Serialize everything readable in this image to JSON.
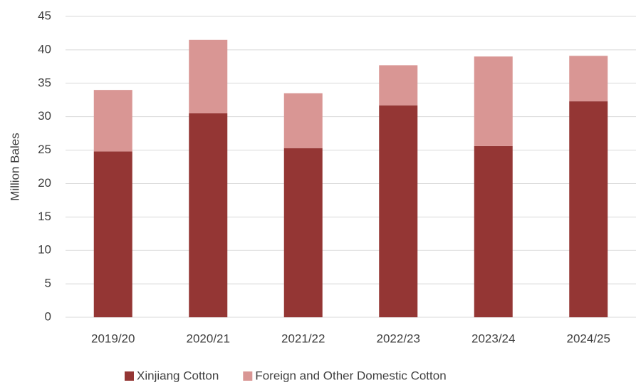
{
  "chart_data": {
    "type": "stacked_bar",
    "y_label": "Million Bales",
    "categories": [
      "2019/20",
      "2020/21",
      "2021/22",
      "2022/23",
      "2023/24",
      "2024/25"
    ],
    "series": [
      {
        "name": "Xinjiang Cotton",
        "color": "#943634",
        "values": [
          24.8,
          30.5,
          25.3,
          31.7,
          25.6,
          32.3
        ]
      },
      {
        "name": "Foreign and Other Domestic Cotton",
        "color": "#d99694",
        "values": [
          9.2,
          11.0,
          8.2,
          6.0,
          13.4,
          6.8
        ]
      }
    ],
    "ylim": [
      0,
      45
    ],
    "yticks": [
      0,
      5,
      10,
      15,
      20,
      25,
      30,
      35,
      40,
      45
    ],
    "grid": true,
    "legend": "bottom"
  }
}
